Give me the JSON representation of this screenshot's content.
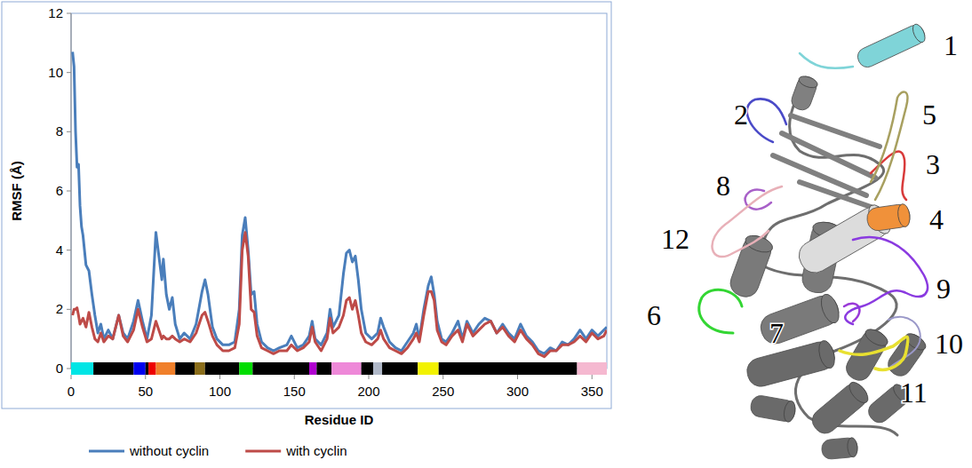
{
  "chart_data": {
    "type": "line",
    "x_label": "Residue ID",
    "y_label": "RMSF (Å)",
    "xlim": [
      0,
      360
    ],
    "ylim": [
      0,
      12
    ],
    "xticks": [
      0,
      50,
      100,
      150,
      200,
      250,
      300,
      350
    ],
    "yticks": [
      0,
      2,
      4,
      6,
      8,
      10,
      12
    ],
    "grid": false,
    "legend": "bottom",
    "x": [
      1,
      2,
      3,
      4,
      5,
      6,
      7,
      8,
      10,
      12,
      14,
      16,
      18,
      20,
      22,
      25,
      28,
      32,
      35,
      38,
      42,
      45,
      48,
      51,
      54,
      57,
      59,
      61,
      62,
      64,
      66,
      68,
      70,
      73,
      76,
      80,
      84,
      88,
      90,
      92,
      95,
      98,
      102,
      106,
      110,
      113,
      115,
      117,
      119,
      121,
      123,
      125,
      128,
      132,
      136,
      140,
      145,
      148,
      152,
      156,
      160,
      162,
      164,
      168,
      172,
      174,
      176,
      180,
      183,
      185,
      187,
      189,
      191,
      193,
      195,
      198,
      202,
      206,
      208,
      210,
      214,
      218,
      222,
      226,
      230,
      232,
      234,
      237,
      240,
      242,
      244,
      246,
      249,
      252,
      256,
      260,
      263,
      266,
      270,
      274,
      278,
      282,
      286,
      290,
      294,
      298,
      302,
      306,
      310,
      314,
      318,
      322,
      326,
      330,
      334,
      338,
      342,
      346,
      350,
      354,
      358,
      360
    ],
    "series": [
      {
        "name": "without cyclin",
        "color": "#4a7ebb",
        "values": [
          10.7,
          10.2,
          8,
          6.8,
          6.9,
          5.5,
          4.8,
          4.5,
          3.5,
          3.3,
          2.5,
          1.8,
          1.2,
          1.5,
          1.0,
          1.3,
          1.0,
          1.8,
          1.2,
          1.0,
          1.6,
          2.3,
          1.6,
          1.0,
          1.8,
          4.6,
          3.8,
          3.0,
          3.7,
          2.5,
          2.0,
          2.4,
          1.5,
          1.0,
          1.2,
          1.0,
          1.5,
          2.6,
          3.0,
          2.5,
          1.4,
          1.0,
          0.8,
          0.8,
          0.9,
          2.0,
          4.5,
          5.1,
          4.0,
          2.5,
          2.6,
          1.5,
          0.9,
          0.7,
          0.6,
          0.7,
          0.8,
          1.1,
          0.7,
          0.8,
          1.1,
          1.6,
          1.0,
          0.8,
          1.2,
          2.0,
          1.4,
          1.8,
          3.2,
          3.9,
          4.0,
          3.6,
          3.8,
          3.0,
          2.0,
          1.2,
          1.0,
          1.2,
          1.7,
          1.4,
          0.9,
          0.7,
          0.6,
          0.9,
          1.2,
          1.5,
          1.0,
          2.0,
          2.8,
          3.1,
          2.5,
          1.6,
          1.0,
          0.9,
          1.2,
          1.6,
          1.0,
          1.6,
          1.2,
          1.5,
          1.7,
          1.6,
          1.2,
          1.5,
          1.2,
          1.0,
          1.5,
          1.1,
          0.9,
          0.6,
          0.5,
          0.7,
          0.6,
          0.9,
          0.8,
          1.0,
          1.3,
          1.0,
          1.3,
          1.1,
          1.3,
          1.4
        ]
      },
      {
        "name": "with cyclin",
        "color": "#be4b48",
        "values": [
          1.8,
          2.0,
          2.0,
          2.05,
          1.8,
          1.5,
          1.6,
          1.7,
          1.4,
          1.9,
          1.4,
          1.0,
          0.9,
          1.2,
          0.9,
          1.1,
          1.0,
          1.8,
          1.1,
          0.9,
          1.3,
          2.0,
          1.4,
          0.9,
          1.0,
          1.6,
          1.3,
          1.0,
          1.1,
          1.0,
          1.0,
          1.1,
          1.0,
          0.9,
          1.0,
          0.9,
          1.2,
          1.8,
          1.9,
          1.6,
          1.1,
          0.8,
          0.6,
          0.6,
          0.7,
          1.5,
          4.0,
          4.6,
          3.8,
          2.0,
          1.9,
          1.1,
          0.7,
          0.6,
          0.5,
          0.6,
          0.6,
          0.8,
          0.6,
          0.7,
          0.9,
          1.4,
          0.9,
          0.6,
          1.0,
          1.7,
          1.2,
          1.4,
          1.8,
          2.3,
          2.4,
          2.0,
          2.3,
          1.8,
          1.2,
          0.9,
          0.8,
          1.0,
          1.3,
          1.0,
          0.7,
          0.6,
          0.5,
          0.7,
          1.0,
          1.2,
          0.9,
          1.8,
          2.6,
          2.6,
          2.3,
          1.3,
          0.9,
          0.8,
          1.1,
          1.3,
          0.9,
          1.5,
          1.1,
          1.3,
          1.5,
          1.6,
          1.2,
          1.4,
          1.1,
          0.9,
          1.3,
          1.0,
          0.8,
          0.5,
          0.4,
          0.6,
          0.6,
          0.8,
          0.8,
          0.9,
          1.1,
          0.9,
          1.2,
          1.0,
          1.1,
          1.3
        ]
      }
    ],
    "regions": [
      {
        "start": 0,
        "end": 15,
        "color": "#00e5e5"
      },
      {
        "start": 15,
        "end": 42,
        "color": "#000000"
      },
      {
        "start": 42,
        "end": 50,
        "color": "#0000ee"
      },
      {
        "start": 50,
        "end": 52,
        "color": "#000000"
      },
      {
        "start": 52,
        "end": 57,
        "color": "#ee0000"
      },
      {
        "start": 57,
        "end": 70,
        "color": "#f07f2a"
      },
      {
        "start": 70,
        "end": 83,
        "color": "#000000"
      },
      {
        "start": 83,
        "end": 90,
        "color": "#8a6d1a"
      },
      {
        "start": 90,
        "end": 113,
        "color": "#000000"
      },
      {
        "start": 113,
        "end": 122,
        "color": "#00dd00"
      },
      {
        "start": 122,
        "end": 160,
        "color": "#000000"
      },
      {
        "start": 160,
        "end": 165,
        "color": "#b000d0"
      },
      {
        "start": 165,
        "end": 175,
        "color": "#000000"
      },
      {
        "start": 175,
        "end": 195,
        "color": "#ee88d8"
      },
      {
        "start": 195,
        "end": 203,
        "color": "#000000"
      },
      {
        "start": 203,
        "end": 209,
        "color": "#b0b8c8"
      },
      {
        "start": 209,
        "end": 233,
        "color": "#000000"
      },
      {
        "start": 233,
        "end": 247,
        "color": "#f2f200"
      },
      {
        "start": 247,
        "end": 340,
        "color": "#000000"
      },
      {
        "start": 340,
        "end": 360,
        "color": "#f5b8d0"
      }
    ]
  },
  "structure": {
    "labels": [
      {
        "text": "1",
        "color": "#7fd4d8"
      },
      {
        "text": "2",
        "color": "#4a4ac8"
      },
      {
        "text": "3",
        "color": "#d83a3a"
      },
      {
        "text": "4",
        "color": "#f0913a"
      },
      {
        "text": "5",
        "color": "#a8a060"
      },
      {
        "text": "6",
        "color": "#33d633"
      },
      {
        "text": "7",
        "color": "#9a3ad8"
      },
      {
        "text": "8",
        "color": "#a860c8"
      },
      {
        "text": "9",
        "color": "#8a3ae0"
      },
      {
        "text": "10",
        "color": "#9a98c8"
      },
      {
        "text": "11",
        "color": "#e8e030"
      },
      {
        "text": "12",
        "color": "#e8b0b8"
      }
    ]
  }
}
